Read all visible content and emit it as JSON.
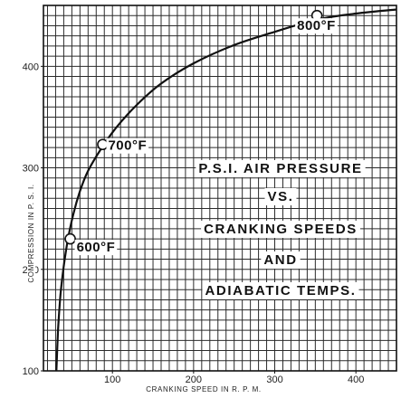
{
  "chart_data": {
    "type": "line",
    "title_lines": [
      "P.S.I. AIR PRESSURE",
      "VS.",
      "CRANKING SPEEDS",
      "AND",
      "ADIABATIC TEMPS."
    ],
    "xlabel": "CRANKING  SPEED  IN  R. P. M.",
    "ylabel": "COMPRESSION  IN  P. S. I.",
    "xlim": [
      15,
      450
    ],
    "ylim": [
      100,
      460
    ],
    "x_ticks": [
      100,
      200,
      300,
      400
    ],
    "x_tick_labels": [
      "100",
      "200",
      "300",
      "400"
    ],
    "y_ticks": [
      100,
      200,
      300,
      400
    ],
    "y_tick_labels": [
      "100",
      "200",
      "300",
      "400"
    ],
    "grid": true,
    "series": [
      {
        "x": [
          31,
          33,
          36,
          40,
          45,
          52,
          60,
          70,
          87,
          105,
          130,
          160,
          200,
          250,
          300,
          352,
          400,
          450
        ],
        "y": [
          100,
          140,
          175,
          203,
          229,
          255,
          277,
          297,
          320,
          340,
          362,
          383,
          403,
          421,
          434,
          446,
          452,
          456
        ]
      }
    ],
    "annotations": [
      {
        "label": "600°F",
        "x": 48,
        "y": 230
      },
      {
        "label": "700°F",
        "x": 88,
        "y": 323
      },
      {
        "label": "800°F",
        "x": 352,
        "y": 450
      }
    ]
  }
}
